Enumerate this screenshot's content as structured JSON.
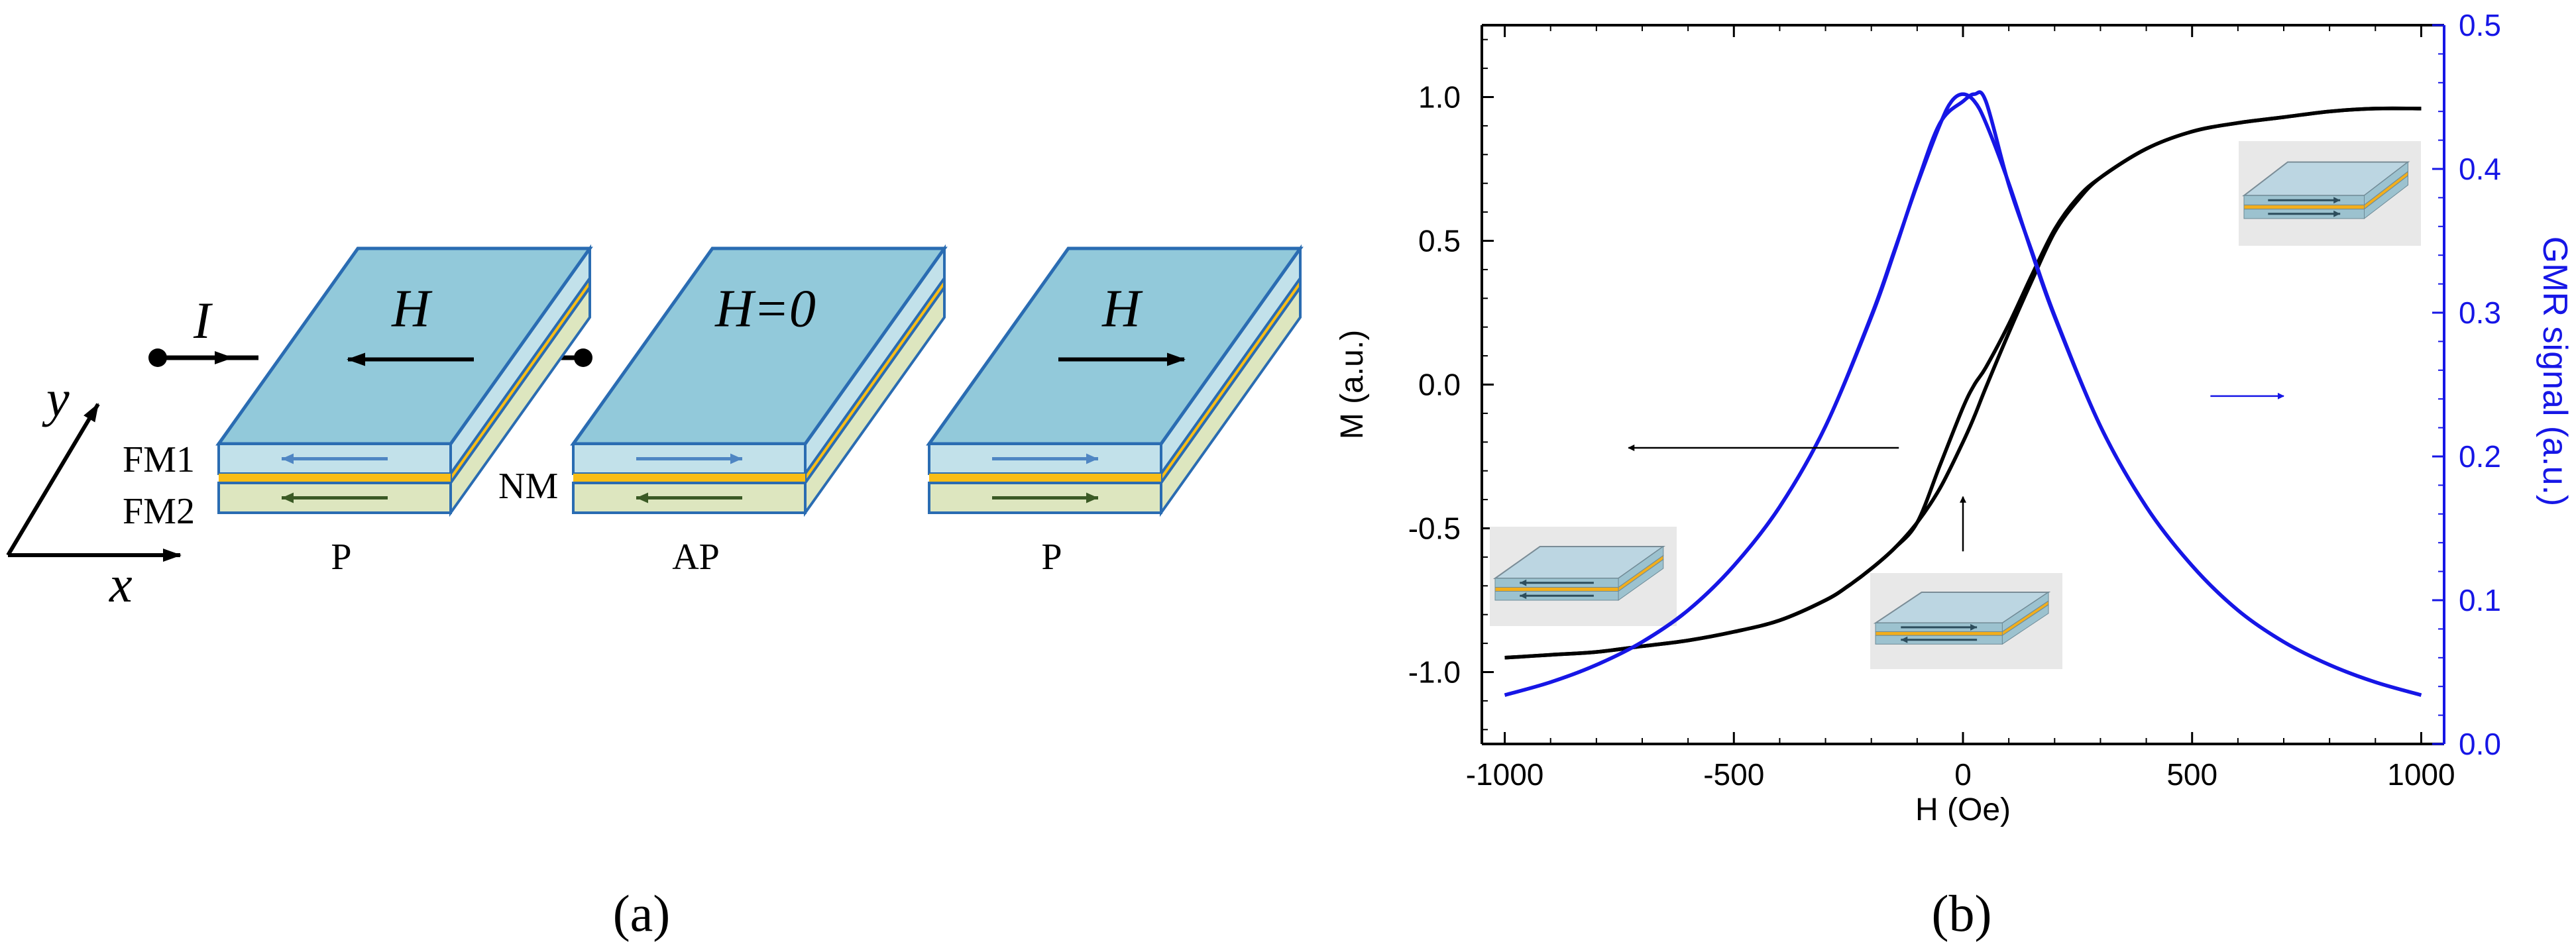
{
  "figure": {
    "panel_a": {
      "label": "(a)",
      "current_label": "I",
      "axis_x": "x",
      "axis_y": "y",
      "layer_fm1": "FM1",
      "layer_nm": "NM",
      "layer_fm2": "FM2",
      "devices": [
        {
          "field_label": "H",
          "field_direction": "left",
          "fm1_arrow": "left",
          "fm2_arrow": "left",
          "state": "P"
        },
        {
          "field_label": "H=0",
          "field_direction": "none",
          "fm1_arrow": "right",
          "fm2_arrow": "left",
          "state": "AP"
        },
        {
          "field_label": "H",
          "field_direction": "right",
          "fm1_arrow": "right",
          "fm2_arrow": "right",
          "state": "P"
        }
      ],
      "colors": {
        "top": "#92c9da",
        "edge": "#2a6cb2",
        "fm1": "#c2e1ea",
        "fm2": "#dde6bf",
        "spacer": "#f9bd16"
      }
    },
    "panel_b": {
      "label": "(b)"
    }
  },
  "chart_data": {
    "type": "line",
    "xlabel": "H (Oe)",
    "ylabel": "M (a.u.)",
    "y2label": "GMR signal (a.u.)",
    "xlim": [
      -1050,
      1050
    ],
    "ylim": [
      -1.25,
      1.25
    ],
    "y2lim": [
      0.0,
      0.5
    ],
    "xticks": [
      "-1000",
      "-500",
      "0",
      "500",
      "1000"
    ],
    "yticks": [
      "-1.0",
      "-0.5",
      "0.0",
      "0.5",
      "1.0"
    ],
    "y2ticks": [
      "0.0",
      "0.1",
      "0.2",
      "0.3",
      "0.4",
      "0.5"
    ],
    "series": [
      {
        "axis": "left",
        "color": "#000000",
        "x": [
          -1000,
          -900,
          -800,
          -700,
          -600,
          -500,
          -400,
          -300,
          -250,
          -200,
          -150,
          -100,
          -50,
          0,
          25,
          50,
          100,
          150,
          200,
          250,
          300,
          400,
          500,
          600,
          700,
          800,
          900,
          1000
        ],
        "y": [
          -0.95,
          -0.94,
          -0.93,
          -0.91,
          -0.89,
          -0.86,
          -0.82,
          -0.75,
          -0.7,
          -0.64,
          -0.57,
          -0.48,
          -0.36,
          -0.2,
          -0.11,
          -0.01,
          0.18,
          0.36,
          0.53,
          0.64,
          0.72,
          0.82,
          0.88,
          0.91,
          0.93,
          0.95,
          0.96,
          0.96
        ]
      },
      {
        "axis": "left",
        "color": "#000000",
        "x": [
          -1000,
          -900,
          -800,
          -700,
          -600,
          -500,
          -400,
          -300,
          -250,
          -200,
          -150,
          -100,
          -50,
          0,
          25,
          50,
          100,
          150,
          200,
          250,
          300,
          400,
          500,
          600,
          700,
          800,
          900,
          1000
        ],
        "y": [
          -0.95,
          -0.94,
          -0.93,
          -0.91,
          -0.89,
          -0.86,
          -0.82,
          -0.75,
          -0.7,
          -0.64,
          -0.57,
          -0.48,
          -0.28,
          -0.08,
          0.0,
          0.06,
          0.21,
          0.38,
          0.54,
          0.65,
          0.72,
          0.82,
          0.88,
          0.91,
          0.93,
          0.95,
          0.96,
          0.96
        ]
      },
      {
        "axis": "right",
        "color": "#1616e6",
        "x": [
          -1000,
          -900,
          -800,
          -700,
          -600,
          -500,
          -400,
          -300,
          -200,
          -150,
          -100,
          -50,
          -25,
          0,
          25,
          50,
          100,
          150,
          200,
          300,
          400,
          500,
          600,
          700,
          800,
          900,
          1000
        ],
        "y": [
          0.034,
          0.043,
          0.055,
          0.071,
          0.093,
          0.124,
          0.165,
          0.221,
          0.298,
          0.343,
          0.389,
          0.431,
          0.447,
          0.452,
          0.447,
          0.432,
          0.39,
          0.342,
          0.297,
          0.221,
          0.165,
          0.124,
          0.093,
          0.071,
          0.055,
          0.043,
          0.034
        ]
      },
      {
        "axis": "right",
        "color": "#1616e6",
        "x": [
          -1000,
          -900,
          -800,
          -700,
          -600,
          -500,
          -400,
          -300,
          -200,
          -150,
          -100,
          -50,
          0,
          25,
          50,
          100,
          150,
          200,
          300,
          400,
          500,
          600,
          700,
          800,
          900,
          1000
        ],
        "y": [
          0.034,
          0.043,
          0.055,
          0.071,
          0.093,
          0.124,
          0.165,
          0.221,
          0.297,
          0.342,
          0.39,
          0.432,
          0.447,
          0.452,
          0.447,
          0.389,
          0.343,
          0.298,
          0.221,
          0.165,
          0.124,
          0.093,
          0.071,
          0.055,
          0.043,
          0.034
        ]
      }
    ],
    "annotations": [
      {
        "type": "arrow",
        "axis": "left",
        "from": [
          -140,
          -0.22
        ],
        "to": [
          -730,
          -0.22
        ],
        "color": "#000000",
        "meaning": "black curve uses left axis"
      },
      {
        "type": "arrow",
        "axis": "left",
        "from": [
          540,
          -0.04
        ],
        "to": [
          700,
          -0.04
        ],
        "color": "#1616e6",
        "meaning": "blue curve uses right axis"
      },
      {
        "type": "arrow",
        "axis": "left",
        "from": [
          0,
          -0.58
        ],
        "to": [
          0,
          -0.39
        ],
        "color": "#000000"
      }
    ],
    "insets": [
      {
        "position": "left",
        "fm1_arrow": "left",
        "fm2_arrow": "left"
      },
      {
        "position": "center",
        "fm1_arrow": "right",
        "fm2_arrow": "left"
      },
      {
        "position": "upper-right",
        "fm1_arrow": "right",
        "fm2_arrow": "right"
      }
    ],
    "grid": false
  }
}
